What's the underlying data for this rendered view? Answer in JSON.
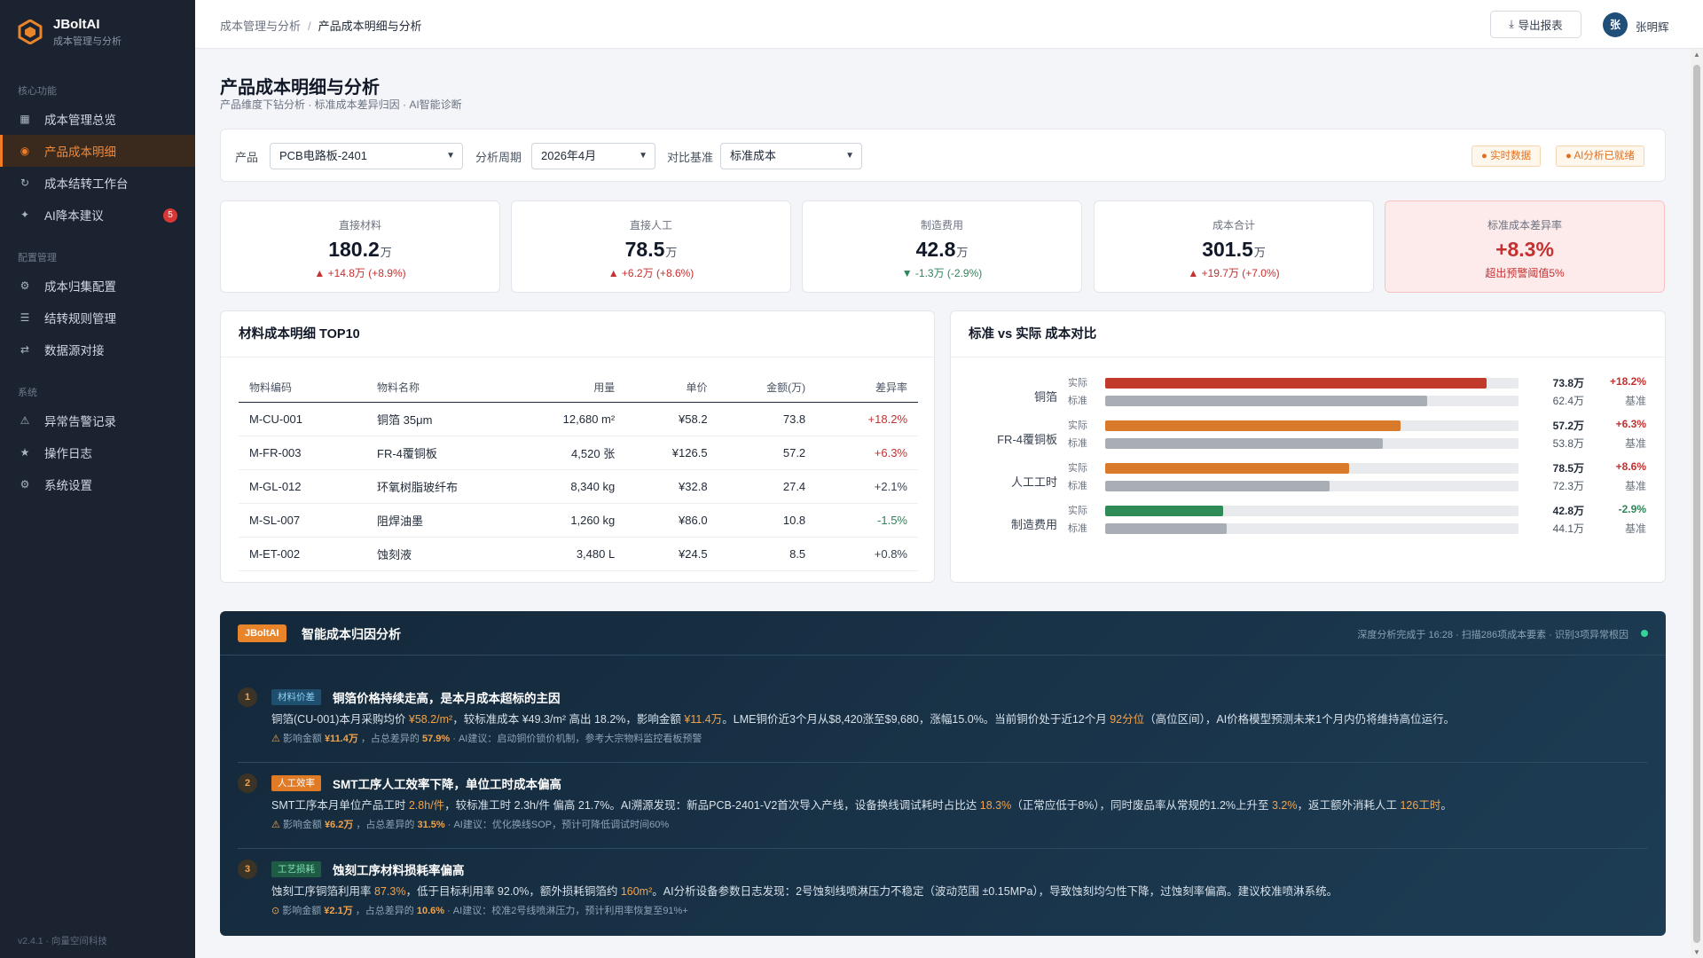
{
  "brand": {
    "name": "JBoltAI",
    "subtitle": "成本管理与分析"
  },
  "sidebar": {
    "groups": [
      {
        "label": "核心功能",
        "items": [
          {
            "label": "成本管理总览",
            "icon": "grid-icon"
          },
          {
            "label": "产品成本明细",
            "icon": "target-icon",
            "active": true
          },
          {
            "label": "成本结转工作台",
            "icon": "refresh-icon"
          },
          {
            "label": "AI降本建议",
            "icon": "sparkle-icon",
            "badge": "5"
          }
        ]
      },
      {
        "label": "配置管理",
        "items": [
          {
            "label": "成本归集配置",
            "icon": "gear-icon"
          },
          {
            "label": "结转规则管理",
            "icon": "list-icon"
          },
          {
            "label": "数据源对接",
            "icon": "swap-icon"
          }
        ]
      },
      {
        "label": "系统",
        "items": [
          {
            "label": "异常告警记录",
            "icon": "warning-icon"
          },
          {
            "label": "操作日志",
            "icon": "star-icon"
          },
          {
            "label": "系统设置",
            "icon": "gear-icon"
          }
        ]
      }
    ],
    "version": "v2.4.1 · 向量空间科技"
  },
  "topbar": {
    "breadcrumb": [
      "成本管理与分析",
      "产品成本明细与分析"
    ],
    "export_label": "导出报表",
    "avatar_initial": "张",
    "user_name": "张明辉"
  },
  "page": {
    "title": "产品成本明细与分析",
    "subtitle": "产品维度下钻分析 · 标准成本差异归因 · AI智能诊断"
  },
  "filters": {
    "product_label": "产品",
    "product_value": "PCB电路板-2401",
    "period_label": "分析周期",
    "period_value": "2026年4月",
    "basis_label": "对比基准",
    "basis_value": "标准成本",
    "tags": [
      "● 实时数据",
      "● AI分析已就绪"
    ]
  },
  "kpis": [
    {
      "label": "直接材料",
      "value": "180.2",
      "unit": "万",
      "delta": "▲ +14.8万 (+8.9%)",
      "trend": "up"
    },
    {
      "label": "直接人工",
      "value": "78.5",
      "unit": "万",
      "delta": "▲ +6.2万 (+8.6%)",
      "trend": "up"
    },
    {
      "label": "制造费用",
      "value": "42.8",
      "unit": "万",
      "delta": "▼ -1.3万 (-2.9%)",
      "trend": "down"
    },
    {
      "label": "成本合计",
      "value": "301.5",
      "unit": "万",
      "delta": "▲ +19.7万 (+7.0%)",
      "trend": "up"
    },
    {
      "label": "标准成本差异率",
      "value": "+8.3%",
      "unit": "",
      "delta": "超出预警阈值5%",
      "trend": "up"
    }
  ],
  "materials": {
    "title": "材料成本明细 TOP10",
    "headers": [
      "物料编码",
      "物料名称",
      "用量",
      "单价",
      "金额(万)",
      "差异率"
    ],
    "rows": [
      [
        "M-CU-001",
        "铜箔 35μm",
        "12,680 m²",
        "¥58.2",
        "73.8",
        "+18.2%"
      ],
      [
        "M-FR-003",
        "FR-4覆铜板",
        "4,520 张",
        "¥126.5",
        "57.2",
        "+6.3%"
      ],
      [
        "M-GL-012",
        "环氧树脂玻纤布",
        "8,340 kg",
        "¥32.8",
        "27.4",
        "+2.1%"
      ],
      [
        "M-SL-007",
        "阻焊油墨",
        "1,260 kg",
        "¥86.0",
        "10.8",
        "-1.5%"
      ],
      [
        "M-ET-002",
        "蚀刻液",
        "3,480 L",
        "¥24.5",
        "8.5",
        "+0.8%"
      ]
    ],
    "diff_colors": [
      "#c53030",
      "#c53030",
      "#374151",
      "#2f855a",
      "#374151"
    ]
  },
  "compare": {
    "title": "标准 vs 实际 成本对比",
    "actual_tag": "实际",
    "standard_tag": "标准",
    "base_label": "基准",
    "scale_max": 80,
    "items": [
      {
        "name": "铜箔",
        "actual": 73.8,
        "actual_text": "73.8万",
        "standard": 62.4,
        "standard_text": "62.4万",
        "diff": "+18.2%",
        "color": "#c0392b",
        "diff_color": "#c53030"
      },
      {
        "name": "FR-4覆铜板",
        "actual": 57.2,
        "actual_text": "57.2万",
        "standard": 53.8,
        "standard_text": "53.8万",
        "diff": "+6.3%",
        "color": "#d97a2b",
        "diff_color": "#c53030"
      },
      {
        "name": "人工工时",
        "actual": 78.5,
        "actual_text": "78.5万",
        "standard": 72.3,
        "standard_text": "72.3万",
        "diff": "+8.6%",
        "color": "#d97a2b",
        "diff_color": "#c53030",
        "bar_max": 133
      },
      {
        "name": "制造费用",
        "actual": 42.8,
        "actual_text": "42.8万",
        "standard": 44.1,
        "standard_text": "44.1万",
        "diff": "-2.9%",
        "color": "#2e8b57",
        "diff_color": "#2f855a",
        "bar_max": 150
      }
    ],
    "standard_color": "#a9adb4"
  },
  "ai": {
    "badge": "JBoltAI",
    "title": "智能成本归因分析",
    "status": "深度分析完成于 16:28 · 扫描286项成本要素 · 识别3项异常根因",
    "items": [
      {
        "num": "1",
        "tag": "材料价差",
        "tag_style": "tag-blue",
        "title": "铜箔价格持续走高，是本月成本超标的主因",
        "body": [
          [
            "铜箔(CU-001)本月采购均价 ",
            false
          ],
          [
            "¥58.2/m²",
            true
          ],
          [
            "，较标准成本 ¥49.3/m² 高出 18.2%，影响金额 ",
            false
          ],
          [
            "¥11.4万",
            true
          ],
          [
            "。LME铜价近3个月从$8,420涨至$9,680，涨幅15.0%。当前铜价处于近12个月 ",
            false
          ],
          [
            "92分位",
            true
          ],
          [
            "（高位区间），AI价格模型预测未来1个月内仍将维持高位运行。",
            false
          ]
        ],
        "foot_icon": "⚠",
        "foot": [
          [
            "影响金额 ",
            false
          ],
          [
            "¥11.4万",
            true
          ],
          [
            " ，占总差异的 ",
            false
          ],
          [
            "57.9%",
            true
          ],
          [
            " · AI建议：启动铜价锁价机制，参考大宗物料监控看板预警",
            false
          ]
        ]
      },
      {
        "num": "2",
        "tag": "人工效率",
        "tag_style": "tag-orange",
        "title": "SMT工序人工效率下降，单位工时成本偏高",
        "body": [
          [
            "SMT工序本月单位产品工时 ",
            false
          ],
          [
            "2.8h/件",
            true
          ],
          [
            "，较标准工时 2.3h/件 偏高 21.7%。AI溯源发现：新品PCB-2401-V2首次导入产线，设备换线调试耗时占比达 ",
            false
          ],
          [
            "18.3%",
            true
          ],
          [
            "（正常应低于8%），同时废品率从常规的1.2%上升至 ",
            false
          ],
          [
            "3.2%",
            true
          ],
          [
            "，返工额外消耗人工 ",
            false
          ],
          [
            "126工时",
            true
          ],
          [
            "。",
            false
          ]
        ],
        "foot_icon": "⚠",
        "foot": [
          [
            "影响金额 ",
            false
          ],
          [
            "¥6.2万",
            true
          ],
          [
            " ，占总差异的 ",
            false
          ],
          [
            "31.5%",
            true
          ],
          [
            " · AI建议：优化换线SOP，预计可降低调试时间60%",
            false
          ]
        ]
      },
      {
        "num": "3",
        "tag": "工艺损耗",
        "tag_style": "tag-green",
        "title": "蚀刻工序材料损耗率偏高",
        "body": [
          [
            "蚀刻工序铜箔利用率 ",
            false
          ],
          [
            "87.3%",
            true
          ],
          [
            "，低于目标利用率 92.0%，额外损耗铜箔约 ",
            false
          ],
          [
            "160m²",
            true
          ],
          [
            "。AI分析设备参数日志发现：2号蚀刻线喷淋压力不稳定（波动范围 ±0.15MPa），导致蚀刻均匀性下降，过蚀刻率偏高。建议校准喷淋系统。",
            false
          ]
        ],
        "foot_icon": "⊙",
        "foot": [
          [
            "影响金额 ",
            false
          ],
          [
            "¥2.1万",
            true
          ],
          [
            " ，占总差异的 ",
            false
          ],
          [
            "10.6%",
            true
          ],
          [
            " · AI建议：校准2号线喷淋压力，预计利用率恢复至91%+",
            false
          ]
        ]
      }
    ]
  }
}
